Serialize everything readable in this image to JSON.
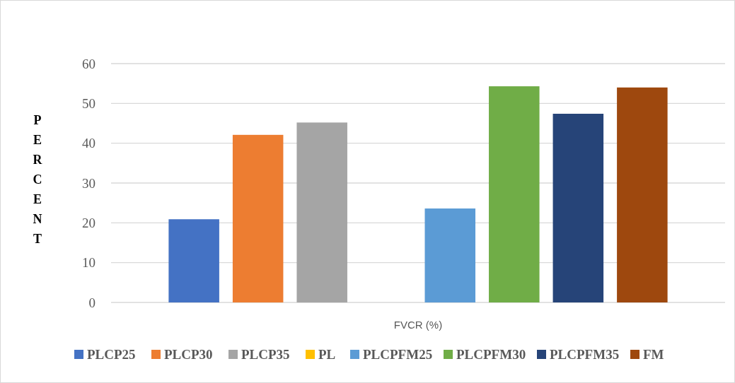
{
  "chart_data": {
    "type": "bar",
    "categories": [
      "FVCR (%)"
    ],
    "ylabel": "PERCENT",
    "ylim": [
      0,
      60
    ],
    "yticks": [
      0,
      10,
      20,
      30,
      40,
      50,
      60
    ],
    "grid": "y",
    "legend": "bottom",
    "series": [
      {
        "name": "PLCP25",
        "color": "#4472c4",
        "values": [
          20.9
        ]
      },
      {
        "name": "PLCP30",
        "color": "#ed7d31",
        "values": [
          42.1
        ]
      },
      {
        "name": "PLCP35",
        "color": "#a5a5a5",
        "values": [
          45.2
        ]
      },
      {
        "name": "PL",
        "color": "#ffc000",
        "values": [
          0
        ]
      },
      {
        "name": "PLCPFM25",
        "color": "#5b9bd5",
        "values": [
          23.6
        ]
      },
      {
        "name": "PLCPFM30",
        "color": "#70ad47",
        "values": [
          54.3
        ]
      },
      {
        "name": "PLCPFM35",
        "color": "#264478",
        "values": [
          47.4
        ]
      },
      {
        "name": "FM",
        "color": "#9e480e",
        "values": [
          54.0
        ]
      }
    ]
  }
}
